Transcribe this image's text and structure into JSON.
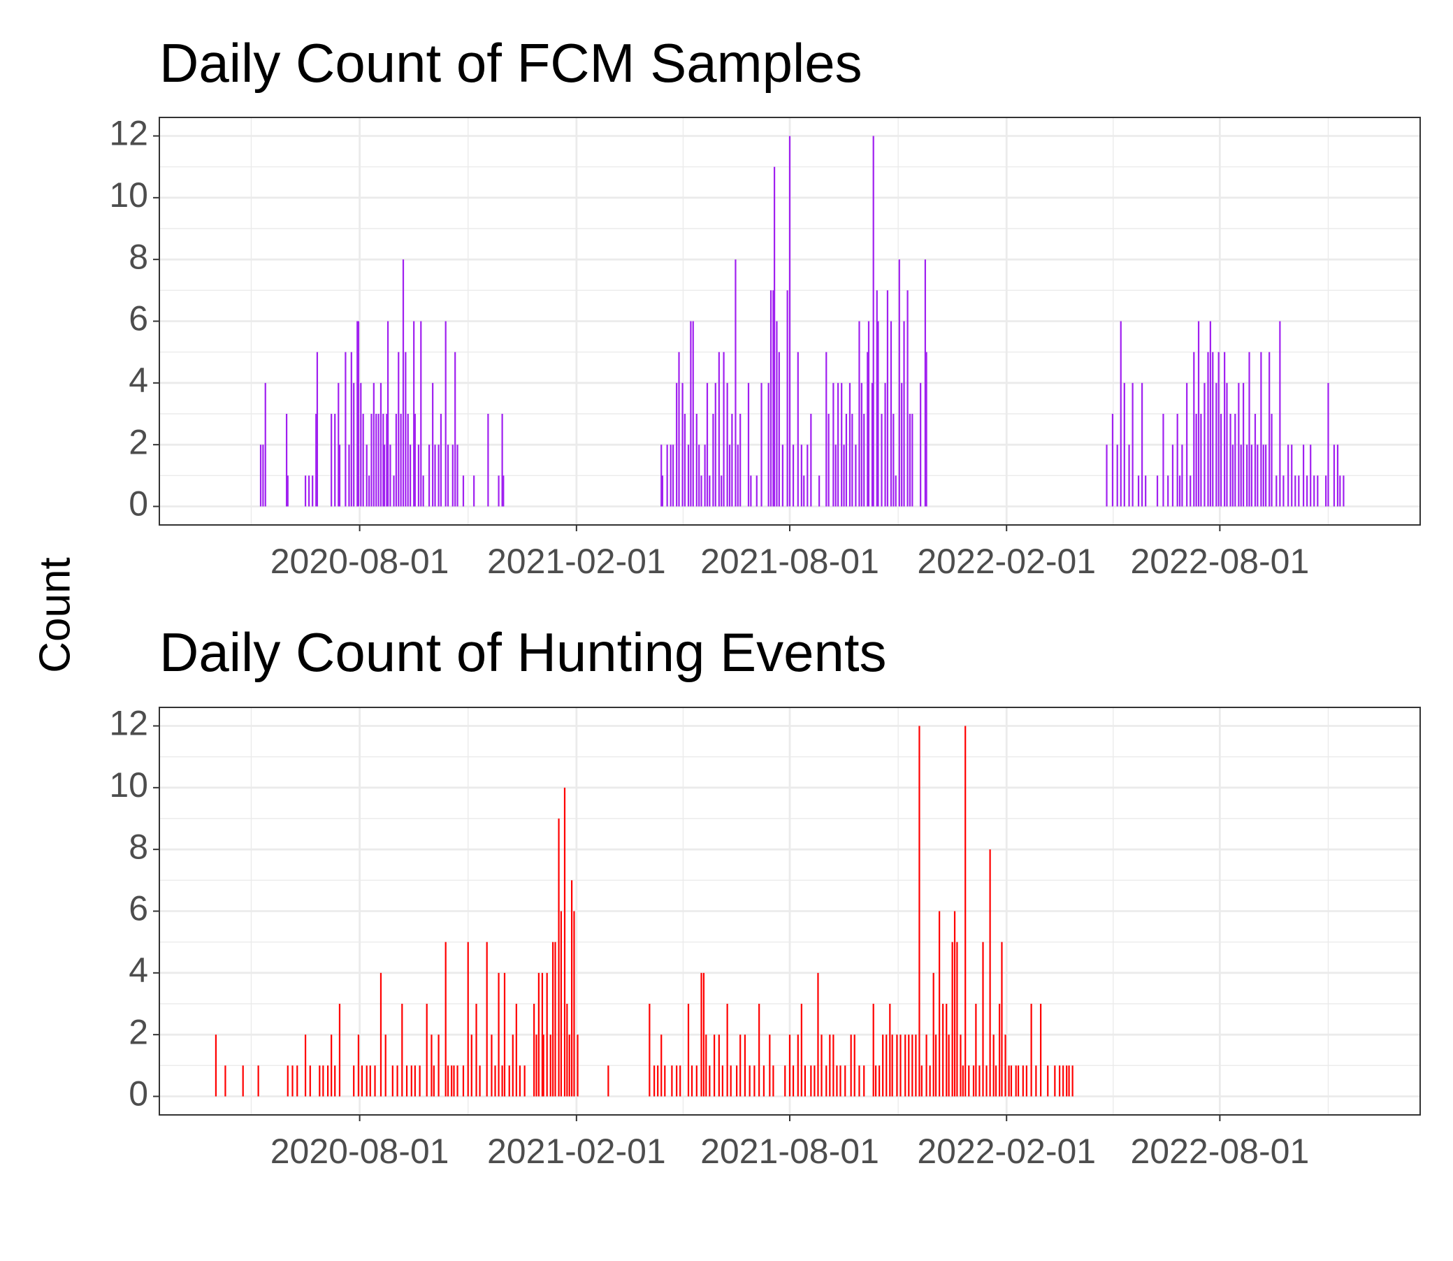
{
  "ylabel": "Count",
  "chart_data": [
    {
      "type": "bar",
      "title": "Daily Count of FCM Samples",
      "color": "#a020f0",
      "xlim": [
        "2020-02-13",
        "2023-01-18"
      ],
      "xticks": [
        "2020-08-01",
        "2021-02-01",
        "2021-08-01",
        "2022-02-01",
        "2022-08-01"
      ],
      "ylim": [
        -0.6,
        12.6
      ],
      "yticks": [
        0,
        2,
        4,
        6,
        8,
        10,
        12
      ],
      "grid": true,
      "x": [
        "2020-05-09",
        "2020-05-11",
        "2020-05-13",
        "2020-05-31",
        "2020-06-01",
        "2020-06-16",
        "2020-06-19",
        "2020-06-22",
        "2020-06-25",
        "2020-06-26",
        "2020-07-08",
        "2020-07-11",
        "2020-07-14",
        "2020-07-15",
        "2020-07-20",
        "2020-07-23",
        "2020-07-25",
        "2020-07-27",
        "2020-07-30",
        "2020-07-31",
        "2020-08-02",
        "2020-08-04",
        "2020-08-07",
        "2020-08-09",
        "2020-08-11",
        "2020-08-13",
        "2020-08-15",
        "2020-08-17",
        "2020-08-19",
        "2020-08-21",
        "2020-08-22",
        "2020-08-24",
        "2020-08-25",
        "2020-08-27",
        "2020-08-30",
        "2020-09-01",
        "2020-09-03",
        "2020-09-05",
        "2020-09-07",
        "2020-09-09",
        "2020-09-11",
        "2020-09-13",
        "2020-09-16",
        "2020-09-17",
        "2020-09-20",
        "2020-09-22",
        "2020-09-24",
        "2020-09-29",
        "2020-10-02",
        "2020-10-04",
        "2020-10-07",
        "2020-10-09",
        "2020-10-13",
        "2020-10-15",
        "2020-10-19",
        "2020-10-21",
        "2020-10-23",
        "2020-10-28",
        "2020-11-06",
        "2020-11-18",
        "2020-11-27",
        "2020-11-30",
        "2020-12-01",
        "2021-04-14",
        "2021-04-15",
        "2021-04-19",
        "2021-04-22",
        "2021-04-24",
        "2021-04-27",
        "2021-04-29",
        "2021-05-02",
        "2021-05-04",
        "2021-05-07",
        "2021-05-09",
        "2021-05-11",
        "2021-05-14",
        "2021-05-16",
        "2021-05-18",
        "2021-05-21",
        "2021-05-23",
        "2021-05-25",
        "2021-05-28",
        "2021-05-30",
        "2021-06-02",
        "2021-06-04",
        "2021-06-06",
        "2021-06-09",
        "2021-06-11",
        "2021-06-13",
        "2021-06-16",
        "2021-06-18",
        "2021-06-20",
        "2021-06-27",
        "2021-06-29",
        "2021-07-04",
        "2021-07-08",
        "2021-07-14",
        "2021-07-16",
        "2021-07-18",
        "2021-07-19",
        "2021-07-21",
        "2021-07-23",
        "2021-07-26",
        "2021-07-30",
        "2021-08-01",
        "2021-08-04",
        "2021-08-08",
        "2021-08-11",
        "2021-08-13",
        "2021-08-16",
        "2021-08-19",
        "2021-08-26",
        "2021-09-01",
        "2021-09-03",
        "2021-09-07",
        "2021-09-09",
        "2021-09-11",
        "2021-09-14",
        "2021-09-16",
        "2021-09-18",
        "2021-09-21",
        "2021-09-23",
        "2021-09-26",
        "2021-09-29",
        "2021-10-01",
        "2021-10-03",
        "2021-10-06",
        "2021-10-07",
        "2021-10-10",
        "2021-10-11",
        "2021-10-14",
        "2021-10-15",
        "2021-10-18",
        "2021-10-21",
        "2021-10-23",
        "2021-10-26",
        "2021-10-28",
        "2021-10-30",
        "2021-11-02",
        "2021-11-04",
        "2021-11-06",
        "2021-11-09",
        "2021-11-11",
        "2021-11-13",
        "2021-11-20",
        "2021-11-24",
        "2021-11-25",
        "2022-04-27",
        "2022-05-02",
        "2022-05-06",
        "2022-05-09",
        "2022-05-12",
        "2022-05-16",
        "2022-05-19",
        "2022-05-24",
        "2022-05-27",
        "2022-05-30",
        "2022-06-09",
        "2022-06-14",
        "2022-06-18",
        "2022-06-22",
        "2022-06-26",
        "2022-06-28",
        "2022-06-30",
        "2022-07-04",
        "2022-07-07",
        "2022-07-10",
        "2022-07-12",
        "2022-07-14",
        "2022-07-16",
        "2022-07-19",
        "2022-07-22",
        "2022-07-24",
        "2022-07-26",
        "2022-07-29",
        "2022-07-31",
        "2022-08-02",
        "2022-08-05",
        "2022-08-07",
        "2022-08-10",
        "2022-08-12",
        "2022-08-14",
        "2022-08-17",
        "2022-08-19",
        "2022-08-21",
        "2022-08-24",
        "2022-08-26",
        "2022-08-28",
        "2022-08-31",
        "2022-09-02",
        "2022-09-05",
        "2022-09-07",
        "2022-09-09",
        "2022-09-12",
        "2022-09-14",
        "2022-09-18",
        "2022-09-21",
        "2022-09-24",
        "2022-09-28",
        "2022-10-01",
        "2022-10-04",
        "2022-10-07",
        "2022-10-11",
        "2022-10-14",
        "2022-10-17",
        "2022-10-20",
        "2022-10-23",
        "2022-10-30",
        "2022-11-01",
        "2022-11-06",
        "2022-11-09",
        "2022-11-11",
        "2022-11-14"
      ],
      "values": [
        2,
        2,
        4,
        3,
        1,
        1,
        1,
        1,
        3,
        5,
        3,
        3,
        4,
        2,
        5,
        2,
        5,
        4,
        6,
        6,
        4,
        3,
        2,
        1,
        3,
        4,
        3,
        3,
        4,
        3,
        2,
        3,
        6,
        2,
        1,
        3,
        5,
        3,
        8,
        5,
        3,
        2,
        6,
        3,
        2,
        6,
        1,
        2,
        4,
        2,
        2,
        3,
        6,
        2,
        2,
        5,
        2,
        1,
        1,
        3,
        1,
        3,
        1,
        2,
        1,
        2,
        2,
        2,
        4,
        5,
        4,
        3,
        2,
        6,
        6,
        3,
        2,
        1,
        2,
        4,
        1,
        3,
        4,
        5,
        1,
        5,
        4,
        2,
        3,
        8,
        2,
        3,
        4,
        1,
        1,
        4,
        4,
        7,
        7,
        11,
        6,
        5,
        2,
        7,
        12,
        2,
        5,
        2,
        1,
        2,
        3,
        1,
        5,
        3,
        4,
        2,
        4,
        4,
        2,
        3,
        4,
        3,
        2,
        6,
        4,
        3,
        5,
        6,
        4,
        12,
        7,
        6,
        3,
        4,
        7,
        6,
        3,
        1,
        8,
        4,
        6,
        7,
        3,
        3,
        4,
        8,
        5,
        2,
        3,
        2,
        6,
        4,
        2,
        4,
        1,
        4,
        1,
        1,
        3,
        1,
        2,
        3,
        1,
        2,
        4,
        1,
        5,
        3,
        6,
        3,
        4,
        5,
        6,
        5,
        4,
        5,
        3,
        5,
        4,
        3,
        2,
        3,
        4,
        2,
        4,
        2,
        5,
        2,
        3,
        2,
        5,
        2,
        2,
        5,
        3,
        1,
        6,
        1,
        2,
        2,
        1,
        1,
        2,
        1,
        2,
        1,
        1,
        1,
        4,
        2,
        2,
        1,
        1
      ]
    },
    {
      "type": "bar",
      "title": "Daily Count of Hunting Events",
      "color": "#ff0000",
      "xlim": [
        "2020-02-13",
        "2023-01-18"
      ],
      "xticks": [
        "2020-08-01",
        "2021-02-01",
        "2021-08-01",
        "2022-02-01",
        "2022-08-01"
      ],
      "ylim": [
        -0.6,
        12.6
      ],
      "yticks": [
        0,
        2,
        4,
        6,
        8,
        10,
        12
      ],
      "grid": true,
      "x": [
        "2020-04-01",
        "2020-04-09",
        "2020-04-24",
        "2020-05-07",
        "2020-06-01",
        "2020-06-05",
        "2020-06-09",
        "2020-06-16",
        "2020-06-20",
        "2020-06-28",
        "2020-07-01",
        "2020-07-05",
        "2020-07-08",
        "2020-07-11",
        "2020-07-15",
        "2020-07-27",
        "2020-07-31",
        "2020-08-03",
        "2020-08-07",
        "2020-08-10",
        "2020-08-14",
        "2020-08-19",
        "2020-08-23",
        "2020-08-29",
        "2020-09-02",
        "2020-09-06",
        "2020-09-10",
        "2020-09-14",
        "2020-09-17",
        "2020-09-21",
        "2020-09-27",
        "2020-10-01",
        "2020-10-03",
        "2020-10-07",
        "2020-10-13",
        "2020-10-15",
        "2020-10-18",
        "2020-10-20",
        "2020-10-23",
        "2020-10-28",
        "2020-11-01",
        "2020-11-04",
        "2020-11-08",
        "2020-11-11",
        "2020-11-17",
        "2020-11-21",
        "2020-11-24",
        "2020-11-27",
        "2020-11-30",
        "2020-12-02",
        "2020-12-06",
        "2020-12-09",
        "2020-12-12",
        "2020-12-15",
        "2020-12-19",
        "2020-12-27",
        "2020-12-29",
        "2020-12-31",
        "2021-01-03",
        "2021-01-04",
        "2021-01-07",
        "2021-01-10",
        "2021-01-12",
        "2021-01-14",
        "2021-01-17",
        "2021-01-19",
        "2021-01-22",
        "2021-01-24",
        "2021-01-26",
        "2021-01-28",
        "2021-01-30",
        "2021-02-02",
        "2021-02-28",
        "2021-04-04",
        "2021-04-08",
        "2021-04-11",
        "2021-04-14",
        "2021-04-17",
        "2021-04-23",
        "2021-04-27",
        "2021-04-30",
        "2021-05-07",
        "2021-05-10",
        "2021-05-14",
        "2021-05-18",
        "2021-05-20",
        "2021-05-22",
        "2021-05-25",
        "2021-05-29",
        "2021-06-02",
        "2021-06-05",
        "2021-06-09",
        "2021-06-12",
        "2021-06-17",
        "2021-06-20",
        "2021-06-24",
        "2021-06-28",
        "2021-07-02",
        "2021-07-06",
        "2021-07-10",
        "2021-07-15",
        "2021-07-18",
        "2021-07-28",
        "2021-08-01",
        "2021-08-04",
        "2021-08-08",
        "2021-08-11",
        "2021-08-14",
        "2021-08-19",
        "2021-08-22",
        "2021-08-25",
        "2021-08-28",
        "2021-09-01",
        "2021-09-04",
        "2021-09-07",
        "2021-09-10",
        "2021-09-13",
        "2021-09-17",
        "2021-09-22",
        "2021-09-25",
        "2021-09-29",
        "2021-10-03",
        "2021-10-11",
        "2021-10-13",
        "2021-10-16",
        "2021-10-19",
        "2021-10-22",
        "2021-10-25",
        "2021-10-27",
        "2021-10-31",
        "2021-11-03",
        "2021-11-07",
        "2021-11-10",
        "2021-11-13",
        "2021-11-16",
        "2021-11-19",
        "2021-11-21",
        "2021-11-25",
        "2021-11-28",
        "2021-12-01",
        "2021-12-03",
        "2021-12-06",
        "2021-12-09",
        "2021-12-12",
        "2021-12-14",
        "2021-12-17",
        "2021-12-19",
        "2021-12-21",
        "2021-12-24",
        "2021-12-26",
        "2021-12-28",
        "2021-12-31",
        "2022-01-04",
        "2022-01-06",
        "2022-01-09",
        "2022-01-12",
        "2022-01-15",
        "2022-01-18",
        "2022-01-21",
        "2022-01-23",
        "2022-01-26",
        "2022-01-28",
        "2022-01-31",
        "2022-02-03",
        "2022-02-05",
        "2022-02-09",
        "2022-02-11",
        "2022-02-15",
        "2022-02-18",
        "2022-02-22",
        "2022-02-26",
        "2022-03-02",
        "2022-03-08",
        "2022-03-14",
        "2022-03-18",
        "2022-03-21",
        "2022-03-24",
        "2022-03-26",
        "2022-03-29"
      ],
      "values": [
        2,
        1,
        1,
        1,
        1,
        1,
        1,
        2,
        1,
        1,
        1,
        1,
        2,
        1,
        3,
        1,
        2,
        1,
        1,
        1,
        1,
        4,
        2,
        1,
        1,
        3,
        1,
        1,
        1,
        1,
        3,
        2,
        1,
        2,
        5,
        1,
        1,
        1,
        1,
        1,
        5,
        2,
        3,
        1,
        5,
        2,
        1,
        4,
        1,
        4,
        1,
        2,
        3,
        1,
        1,
        3,
        2,
        4,
        4,
        2,
        4,
        2,
        5,
        5,
        9,
        6,
        10,
        3,
        2,
        7,
        6,
        2,
        1,
        3,
        1,
        1,
        2,
        1,
        1,
        1,
        1,
        3,
        1,
        1,
        4,
        4,
        2,
        1,
        2,
        2,
        1,
        3,
        1,
        1,
        2,
        2,
        1,
        1,
        3,
        1,
        2,
        1,
        1,
        2,
        1,
        2,
        3,
        1,
        1,
        1,
        4,
        2,
        1,
        2,
        2,
        1,
        1,
        1,
        2,
        2,
        1,
        1,
        3,
        1,
        1,
        2,
        2,
        3,
        2,
        2,
        2,
        2,
        2,
        2,
        2,
        12,
        1,
        2,
        1,
        4,
        2,
        6,
        3,
        3,
        2,
        5,
        6,
        5,
        2,
        1,
        12,
        1,
        1,
        3,
        1,
        5,
        1,
        8,
        2,
        1,
        3,
        5,
        2,
        1,
        1,
        1,
        1,
        1,
        1,
        3,
        1,
        3,
        1,
        1,
        1,
        1,
        1,
        1,
        1
      ]
    }
  ]
}
